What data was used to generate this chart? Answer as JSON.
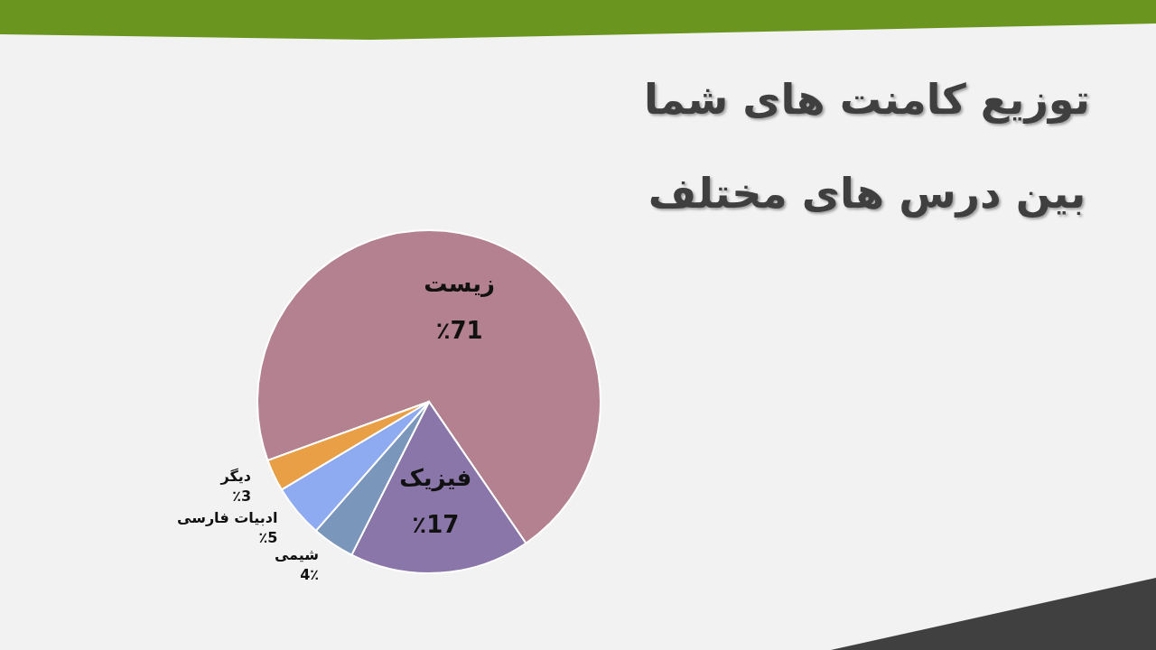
{
  "chart_data": {
    "type": "pie",
    "title": "توزیع کامنت های شما\nبین درس های مختلف",
    "categories": [
      "زیست",
      "فیزیک",
      "شیمی",
      "ادبیات فارسی",
      "دیگر"
    ],
    "values": [
      71,
      17,
      4,
      5,
      3
    ],
    "colors": [
      "#b3818f",
      "#8b76aa",
      "#7a96bb",
      "#8eabf2",
      "#e89f45"
    ],
    "value_labels": [
      "٪71",
      "٪17",
      "4٪",
      "٪5",
      "٪3"
    ]
  }
}
